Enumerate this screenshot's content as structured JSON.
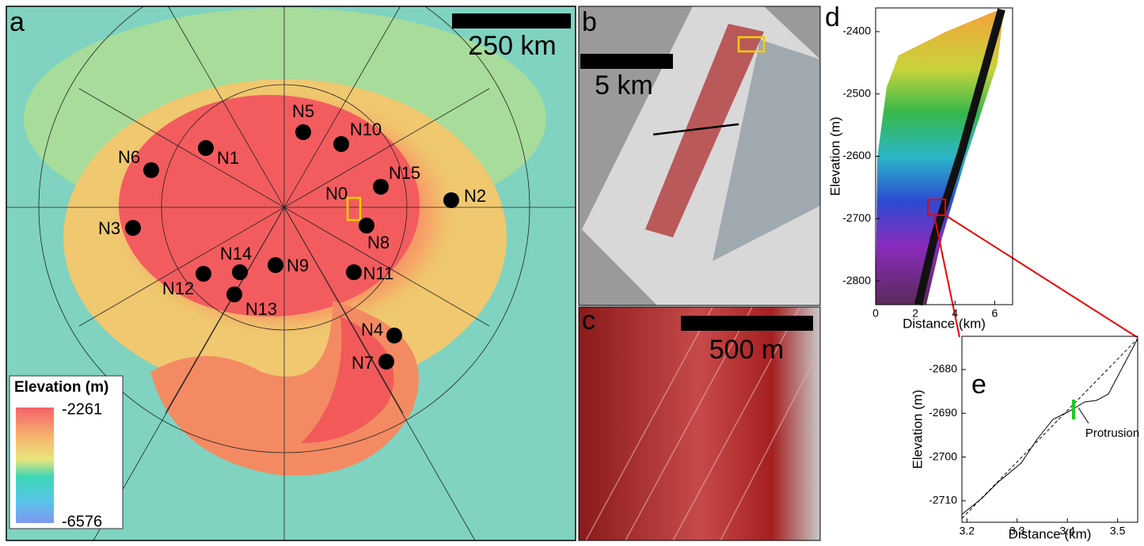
{
  "panels": {
    "a": {
      "letter": "a",
      "scale_bar": "250 km",
      "points": [
        "N0",
        "N1",
        "N2",
        "N3",
        "N4",
        "N5",
        "N6",
        "N7",
        "N8",
        "N9",
        "N10",
        "N11",
        "N12",
        "N13",
        "N14",
        "N15"
      ],
      "legend": {
        "title": "Elevation (m)",
        "max": "-2261",
        "min": "-6576"
      }
    },
    "b": {
      "letter": "b",
      "scale_bar": "5 km"
    },
    "c": {
      "letter": "c",
      "scale_bar": "500 m"
    },
    "d": {
      "letter": "d",
      "xlabel": "Distance (km)",
      "ylabel": "Elevation (m)",
      "xlim": [
        0,
        6.9
      ],
      "ylim": [
        -2362,
        -2838
      ],
      "xticks": [
        0,
        2,
        4,
        6
      ],
      "yticks": [
        -2400,
        -2500,
        -2600,
        -2700,
        -2800
      ]
    },
    "e": {
      "letter": "e",
      "xlabel": "Distance (km)",
      "ylabel": "Elevation (m)",
      "annotation": "Protrusion",
      "xlim": [
        3.19,
        3.54
      ],
      "ylim": [
        -2672.4,
        -2714.9
      ],
      "xticks": [
        3.2,
        3.3,
        3.4,
        3.5
      ],
      "yticks": [
        -2680,
        -2690,
        -2700,
        -2710
      ]
    }
  }
}
